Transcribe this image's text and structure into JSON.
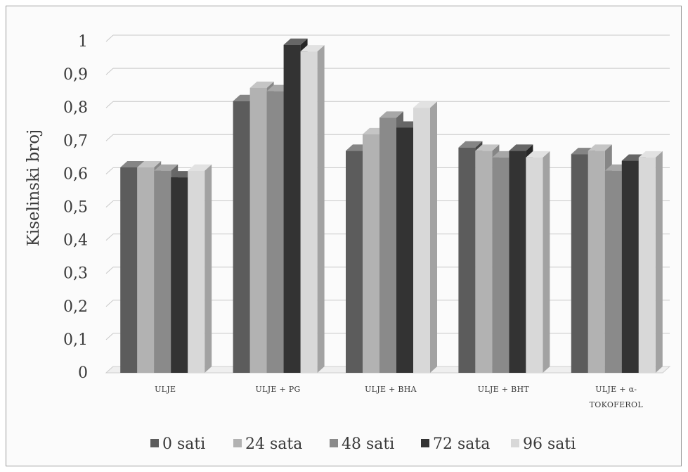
{
  "chart_data": {
    "type": "bar",
    "title": "",
    "xlabel": "",
    "ylabel": "Kiselinski broj",
    "ylim": [
      0,
      1
    ],
    "yticks": [
      "0",
      "0,1",
      "0,2",
      "0,3",
      "0,4",
      "0,5",
      "0,6",
      "0,7",
      "0,8",
      "0,9",
      "1"
    ],
    "grid": true,
    "legend_position": "bottom",
    "categories": [
      [
        "ULJE"
      ],
      [
        "ULJE + PG"
      ],
      [
        "ULJE + BHA"
      ],
      [
        "ULJE + BHT"
      ],
      [
        "ULJE + α-",
        "TOKOFEROL"
      ]
    ],
    "series": [
      {
        "name": "0 sati",
        "color": "#5c5c5c",
        "values": [
          0.62,
          0.82,
          0.67,
          0.68,
          0.66
        ]
      },
      {
        "name": "24 sata",
        "color": "#b2b2b2",
        "values": [
          0.62,
          0.86,
          0.72,
          0.67,
          0.67
        ]
      },
      {
        "name": "48 sati",
        "color": "#8a8a8a",
        "values": [
          0.61,
          0.85,
          0.77,
          0.65,
          0.61
        ]
      },
      {
        "name": "72 sata",
        "color": "#333333",
        "values": [
          0.59,
          0.99,
          0.74,
          0.67,
          0.64
        ]
      },
      {
        "name": "96 sati",
        "color": "#d8d8d8",
        "values": [
          0.61,
          0.97,
          0.8,
          0.65,
          0.65
        ]
      }
    ]
  }
}
